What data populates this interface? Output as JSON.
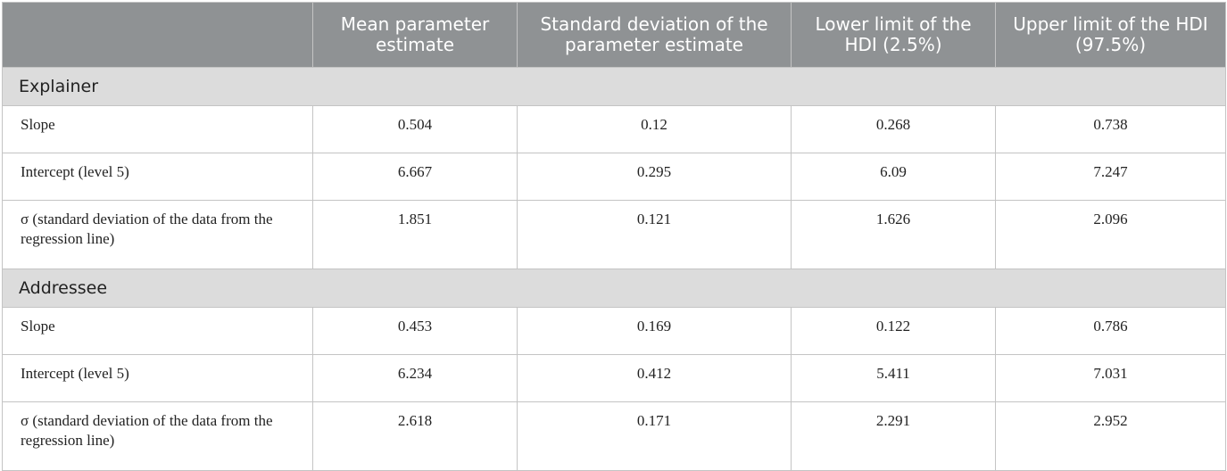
{
  "header": {
    "col0": "",
    "col1": "Mean parameter estimate",
    "col2": "Standard deviation of the parameter estimate",
    "col3": "Lower limit of the HDI (2.5%)",
    "col4": "Upper limit of the HDI (97.5%)"
  },
  "sections": [
    {
      "title": "Explainer",
      "rows": [
        {
          "label": "Slope",
          "values": [
            "0.504",
            "0.12",
            "0.268",
            "0.738"
          ]
        },
        {
          "label": "Intercept (level 5)",
          "values": [
            "6.667",
            "0.295",
            "6.09",
            "7.247"
          ]
        },
        {
          "label": "σ (standard deviation of the data from the regression line)",
          "values": [
            "1.851",
            "0.121",
            "1.626",
            "2.096"
          ]
        }
      ]
    },
    {
      "title": "Addressee",
      "rows": [
        {
          "label": "Slope",
          "values": [
            "0.453",
            "0.169",
            "0.122",
            "0.786"
          ]
        },
        {
          "label": "Intercept (level 5)",
          "values": [
            "6.234",
            "0.412",
            "5.411",
            "7.031"
          ]
        },
        {
          "label": "σ (standard deviation of the data from the regression line)",
          "values": [
            "2.618",
            "0.171",
            "2.291",
            "2.952"
          ]
        }
      ]
    }
  ]
}
